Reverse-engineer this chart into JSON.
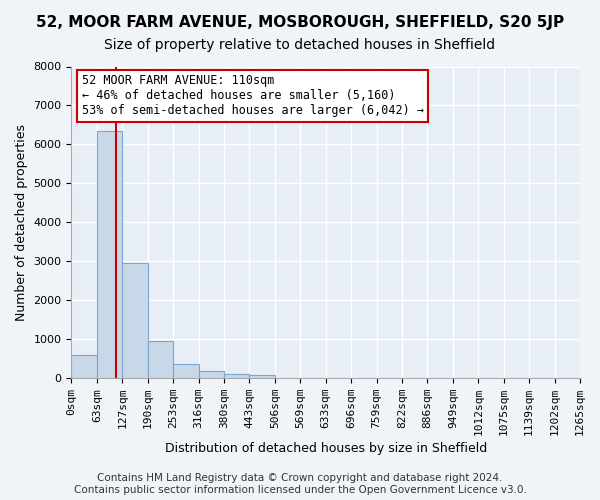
{
  "title": "52, MOOR FARM AVENUE, MOSBOROUGH, SHEFFIELD, S20 5JP",
  "subtitle": "Size of property relative to detached houses in Sheffield",
  "xlabel": "Distribution of detached houses by size in Sheffield",
  "ylabel": "Number of detached properties",
  "bin_labels": [
    "0sqm",
    "63sqm",
    "127sqm",
    "190sqm",
    "253sqm",
    "316sqm",
    "380sqm",
    "443sqm",
    "506sqm",
    "569sqm",
    "633sqm",
    "696sqm",
    "759sqm",
    "822sqm",
    "886sqm",
    "949sqm",
    "1012sqm",
    "1075sqm",
    "1139sqm",
    "1202sqm",
    "1265sqm"
  ],
  "bar_values": [
    580,
    6350,
    2950,
    960,
    360,
    170,
    100,
    70,
    0,
    0,
    0,
    0,
    0,
    0,
    0,
    0,
    0,
    0,
    0,
    0
  ],
  "bar_color": "#c8d8e8",
  "bar_edge_color": "#7aa8cc",
  "ylim": [
    0,
    8000
  ],
  "yticks": [
    0,
    1000,
    2000,
    3000,
    4000,
    5000,
    6000,
    7000,
    8000
  ],
  "annotation_text": "52 MOOR FARM AVENUE: 110sqm\n← 46% of detached houses are smaller (5,160)\n53% of semi-detached houses are larger (6,042) →",
  "annotation_box_color": "#ffffff",
  "annotation_box_edge": "#cc0000",
  "annotation_text_color": "#000000",
  "footer_line1": "Contains HM Land Registry data © Crown copyright and database right 2024.",
  "footer_line2": "Contains public sector information licensed under the Open Government Licence v3.0.",
  "background_color": "#f0f4f8",
  "plot_background": "#e8eef5",
  "grid_color": "#ffffff",
  "title_fontsize": 11,
  "subtitle_fontsize": 10,
  "axis_label_fontsize": 9,
  "tick_fontsize": 8,
  "annotation_fontsize": 8.5,
  "footer_fontsize": 7.5
}
